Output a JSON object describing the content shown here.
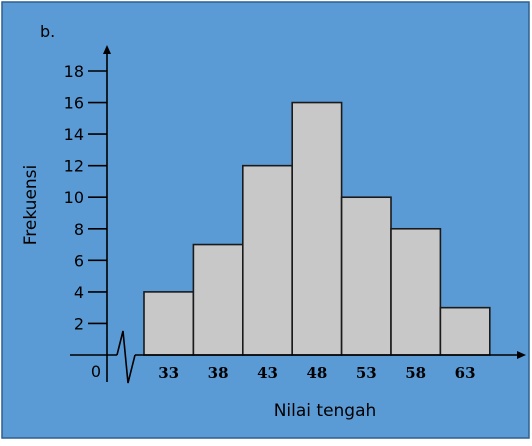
{
  "panel_label": "b.",
  "chart_data": {
    "type": "bar",
    "categories": [
      "33",
      "38",
      "43",
      "48",
      "53",
      "58",
      "63"
    ],
    "values": [
      4,
      7,
      12,
      16,
      10,
      8,
      3
    ],
    "xlabel": "Nilai tengah",
    "ylabel": "Frekuensi",
    "ylim": [
      0,
      18
    ],
    "yticks": [
      2,
      4,
      6,
      8,
      10,
      12,
      14,
      16,
      18
    ],
    "origin_label": "0",
    "grid": false,
    "axis_break": true,
    "colors": {
      "background": "#5b9bd5",
      "bar_fill": "#c8c8c8",
      "bar_stroke": "#1a1a1a",
      "axis": "#000000"
    }
  }
}
